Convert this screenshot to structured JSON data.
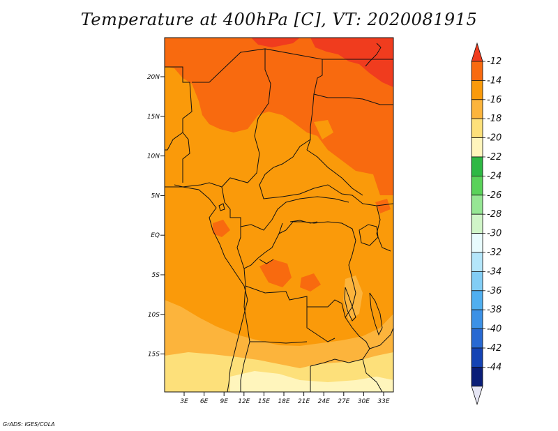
{
  "title": "Temperature at 400hPa [C], VT: 2020081915",
  "credit": "GrADS: IGES/COLA",
  "lat_labels": [
    "20N",
    "15N",
    "10N",
    "5N",
    "EQ",
    "5S",
    "10S",
    "15S"
  ],
  "lon_labels": [
    "3E",
    "6E",
    "9E",
    "12E",
    "15E",
    "18E",
    "21E",
    "24E",
    "27E",
    "30E",
    "33E"
  ],
  "colorbar": {
    "labels": [
      "-12",
      "-14",
      "-16",
      "-18",
      "-20",
      "-22",
      "-24",
      "-26",
      "-28",
      "-30",
      "-32",
      "-34",
      "-36",
      "-38",
      "-40",
      "-42",
      "-44"
    ],
    "colors": [
      "#f03c1e",
      "#f86a0f",
      "#fa9a0a",
      "#fcb43c",
      "#fde07a",
      "#fff5bc",
      "#2eb844",
      "#5ad25a",
      "#96e694",
      "#d0f5c8",
      "#e8fbfd",
      "#b4e6fa",
      "#82cdf5",
      "#50aff0",
      "#3c91e6",
      "#2869d2",
      "#1443b4",
      "#0a1e78",
      "#e6e6f5"
    ]
  },
  "field_colors": {
    "c12": "#f03c1e",
    "c14": "#f86a0f",
    "c16": "#fa9a0a",
    "c18": "#fcb43c",
    "c20": "#fde07a",
    "c22": "#fff5bc"
  }
}
